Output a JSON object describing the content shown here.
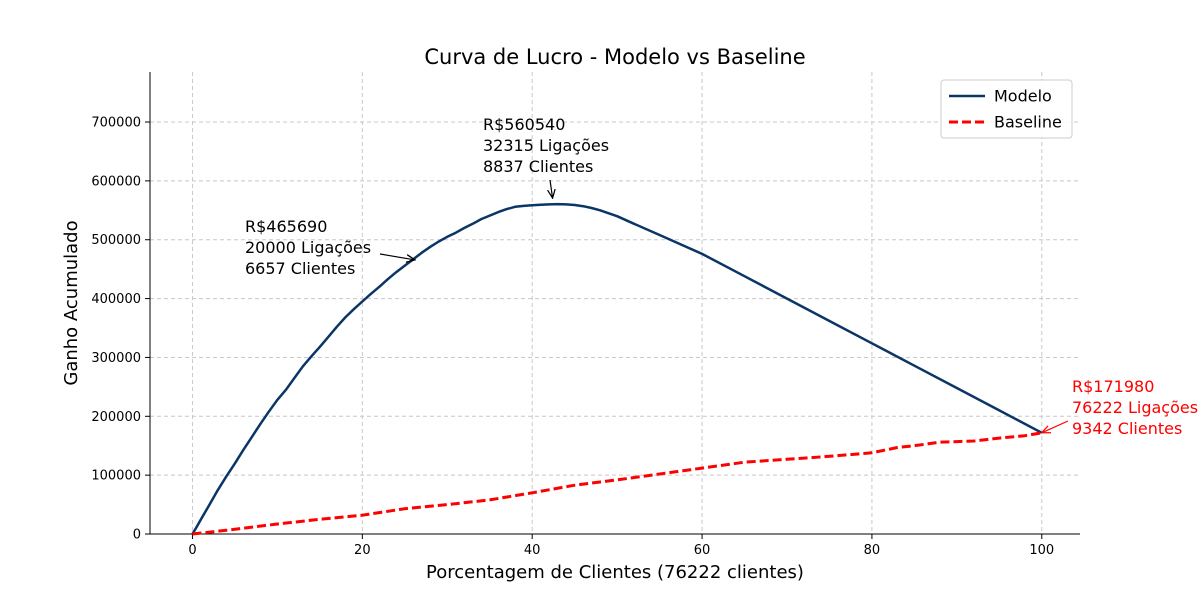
{
  "chart_data": {
    "type": "line",
    "title": "Curva de Lucro - Modelo vs Baseline",
    "xlabel": "Porcentagem de Clientes (76222 clientes)",
    "ylabel": "Ganho Acumulado",
    "xlim": [
      -5,
      104.5
    ],
    "ylim": [
      0,
      785000
    ],
    "xticks": [
      0,
      20,
      40,
      60,
      80,
      100
    ],
    "yticks": [
      0,
      100000,
      200000,
      300000,
      400000,
      500000,
      600000,
      700000
    ],
    "xtick_labels": [
      "0",
      "20",
      "40",
      "60",
      "80",
      "100"
    ],
    "ytick_labels": [
      "0",
      "100000",
      "200000",
      "300000",
      "400000",
      "500000",
      "600000",
      "700000"
    ],
    "grid": true,
    "legend_position": "top-right",
    "series": [
      {
        "name": "Modelo",
        "color": "#0b3566",
        "style": "solid",
        "x": [
          0,
          0.5,
          1,
          2,
          3,
          4,
          5,
          6,
          7,
          8,
          9,
          10,
          11,
          12,
          13,
          14,
          15,
          16,
          17,
          18,
          19,
          20,
          21,
          22,
          23,
          24,
          25,
          26,
          27,
          28,
          29,
          30,
          31,
          32,
          33,
          34,
          35,
          36,
          37,
          38,
          39,
          40,
          41,
          42,
          43,
          44,
          45,
          46,
          47,
          48,
          50,
          52,
          55,
          60,
          65,
          70,
          75,
          80,
          85,
          90,
          95,
          100
        ],
        "y": [
          0,
          12000,
          25000,
          50000,
          75000,
          98000,
          120000,
          143000,
          165000,
          187000,
          208000,
          228000,
          245000,
          265000,
          285000,
          302000,
          318000,
          335000,
          352000,
          368000,
          382000,
          395000,
          408000,
          420000,
          433000,
          445000,
          456000,
          467000,
          478000,
          488000,
          497000,
          505000,
          512000,
          520000,
          527000,
          535000,
          541000,
          547000,
          552000,
          556000,
          557500,
          558500,
          559500,
          560000,
          560540,
          560000,
          559000,
          557000,
          554000,
          550000,
          540000,
          527000,
          508000,
          476000,
          438000,
          400000,
          362000,
          324000,
          286000,
          248000,
          210000,
          171980
        ]
      },
      {
        "name": "Baseline",
        "color": "#ff0000",
        "style": "dashed",
        "x": [
          0,
          5,
          10,
          15,
          20,
          25,
          30,
          35,
          40,
          45,
          50,
          55,
          60,
          65,
          70,
          75,
          80,
          83,
          85,
          88,
          90,
          92,
          95,
          98,
          100
        ],
        "y": [
          0,
          8000,
          17000,
          25000,
          32000,
          43000,
          50000,
          58000,
          70000,
          83000,
          92000,
          102000,
          112000,
          122000,
          127000,
          132000,
          138000,
          147000,
          150000,
          156000,
          157000,
          158000,
          163000,
          167000,
          171980
        ]
      }
    ],
    "annotations": [
      {
        "lines": [
          "R$465690",
          "20000 Ligações",
          "6657 Clientes"
        ],
        "point": [
          26.2,
          465690
        ],
        "color": "#000000"
      },
      {
        "lines": [
          "R$560540",
          "32315 Ligações",
          "8837 Clientes"
        ],
        "point": [
          42.4,
          560540
        ],
        "color": "#000000"
      },
      {
        "lines": [
          "R$171980",
          "76222 Ligações",
          "9342 Clientes"
        ],
        "point": [
          100,
          171980
        ],
        "color": "#ff0000"
      }
    ]
  }
}
